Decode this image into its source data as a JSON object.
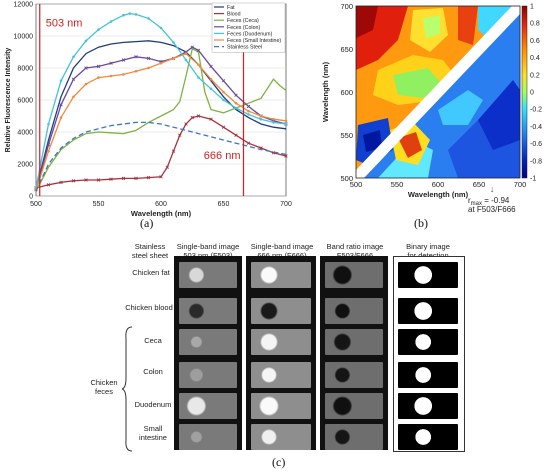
{
  "panel_a": {
    "label": "(a)",
    "chart_data": {
      "type": "line",
      "xlabel": "Wavelength (nm)",
      "ylabel": "Relative Fluorescence Intensity",
      "xlim": [
        500,
        700
      ],
      "ylim": [
        0,
        12000
      ],
      "xticks": [
        "500",
        "550",
        "600",
        "650",
        "700"
      ],
      "yticks": [
        "0",
        "2000",
        "4000",
        "6000",
        "8000",
        "10000",
        "12000"
      ],
      "legend_position": "top-right",
      "annotations": [
        "503 nm",
        "666 nm"
      ],
      "markers_at": [
        503,
        666
      ],
      "series": [
        {
          "name": "Fat",
          "color": "#1f3d7a",
          "dash": "",
          "marker": "",
          "points": [
            [
              500,
              400
            ],
            [
              510,
              3500
            ],
            [
              520,
              6200
            ],
            [
              530,
              8000
            ],
            [
              540,
              8900
            ],
            [
              550,
              9300
            ],
            [
              560,
              9500
            ],
            [
              570,
              9600
            ],
            [
              580,
              9650
            ],
            [
              590,
              9700
            ],
            [
              600,
              9600
            ],
            [
              610,
              9400
            ],
            [
              620,
              9000
            ],
            [
              630,
              8200
            ],
            [
              640,
              7200
            ],
            [
              650,
              6200
            ],
            [
              660,
              5400
            ],
            [
              670,
              4900
            ],
            [
              680,
              4500
            ],
            [
              690,
              4300
            ],
            [
              700,
              4200
            ]
          ]
        },
        {
          "name": "Blood",
          "color": "#a8323e",
          "dash": "",
          "marker": "x",
          "points": [
            [
              500,
              500
            ],
            [
              510,
              700
            ],
            [
              520,
              850
            ],
            [
              530,
              950
            ],
            [
              540,
              1000
            ],
            [
              550,
              1000
            ],
            [
              560,
              1050
            ],
            [
              570,
              1100
            ],
            [
              580,
              1100
            ],
            [
              590,
              1150
            ],
            [
              600,
              1200
            ],
            [
              605,
              1800
            ],
            [
              610,
              2800
            ],
            [
              615,
              3800
            ],
            [
              620,
              4500
            ],
            [
              625,
              4900
            ],
            [
              630,
              5000
            ],
            [
              640,
              4800
            ],
            [
              650,
              4300
            ],
            [
              660,
              3800
            ],
            [
              670,
              3300
            ],
            [
              680,
              3000
            ],
            [
              690,
              2700
            ],
            [
              700,
              2500
            ]
          ]
        },
        {
          "name": "Feces (Ceca)",
          "color": "#7fb241",
          "dash": "",
          "marker": "",
          "points": [
            [
              500,
              300
            ],
            [
              510,
              1800
            ],
            [
              520,
              2900
            ],
            [
              530,
              3500
            ],
            [
              540,
              3900
            ],
            [
              550,
              4000
            ],
            [
              560,
              3950
            ],
            [
              570,
              3900
            ],
            [
              580,
              4100
            ],
            [
              590,
              4600
            ],
            [
              600,
              5000
            ],
            [
              610,
              5400
            ],
            [
              615,
              5900
            ],
            [
              620,
              7500
            ],
            [
              625,
              9200
            ],
            [
              630,
              9000
            ],
            [
              635,
              6500
            ],
            [
              640,
              5400
            ],
            [
              650,
              5200
            ],
            [
              660,
              5500
            ],
            [
              670,
              5800
            ],
            [
              680,
              6100
            ],
            [
              690,
              7300
            ],
            [
              695,
              6900
            ],
            [
              700,
              6600
            ]
          ]
        },
        {
          "name": "Feces (Colon)",
          "color": "#6a4a9c",
          "dash": "",
          "marker": "x",
          "points": [
            [
              500,
              400
            ],
            [
              510,
              3200
            ],
            [
              520,
              5700
            ],
            [
              530,
              7300
            ],
            [
              540,
              8000
            ],
            [
              550,
              8100
            ],
            [
              560,
              8300
            ],
            [
              570,
              8500
            ],
            [
              580,
              8700
            ],
            [
              590,
              8600
            ],
            [
              600,
              8400
            ],
            [
              610,
              8600
            ],
            [
              620,
              9000
            ],
            [
              625,
              9300
            ],
            [
              630,
              9100
            ],
            [
              640,
              8100
            ],
            [
              650,
              7200
            ],
            [
              660,
              6300
            ],
            [
              670,
              5600
            ],
            [
              680,
              5000
            ],
            [
              690,
              4700
            ],
            [
              700,
              4500
            ]
          ]
        },
        {
          "name": "Feces (Duodenum)",
          "color": "#45c3d8",
          "dash": "",
          "marker": "o",
          "points": [
            [
              500,
              500
            ],
            [
              510,
              4500
            ],
            [
              520,
              7200
            ],
            [
              530,
              8700
            ],
            [
              540,
              9700
            ],
            [
              550,
              10400
            ],
            [
              560,
              10900
            ],
            [
              570,
              11300
            ],
            [
              575,
              11400
            ],
            [
              580,
              11350
            ],
            [
              590,
              11100
            ],
            [
              600,
              10500
            ],
            [
              610,
              9600
            ],
            [
              620,
              8500
            ],
            [
              630,
              7400
            ],
            [
              640,
              6700
            ],
            [
              650,
              6000
            ],
            [
              660,
              5500
            ],
            [
              670,
              5100
            ],
            [
              680,
              4800
            ],
            [
              690,
              4600
            ],
            [
              700,
              4500
            ]
          ]
        },
        {
          "name": "Feces (Small Intestine)",
          "color": "#f08a3c",
          "dash": "",
          "marker": "o",
          "points": [
            [
              500,
              350
            ],
            [
              510,
              2800
            ],
            [
              520,
              4900
            ],
            [
              530,
              6200
            ],
            [
              540,
              7000
            ],
            [
              550,
              7400
            ],
            [
              560,
              7500
            ],
            [
              570,
              7600
            ],
            [
              580,
              7800
            ],
            [
              590,
              8000
            ],
            [
              600,
              8300
            ],
            [
              610,
              8600
            ],
            [
              620,
              8900
            ],
            [
              630,
              8200
            ],
            [
              640,
              7300
            ],
            [
              650,
              6500
            ],
            [
              660,
              5800
            ],
            [
              670,
              5300
            ],
            [
              680,
              5000
            ],
            [
              690,
              4800
            ],
            [
              700,
              4700
            ]
          ]
        },
        {
          "name": "Stainless Steel",
          "color": "#3b78c2",
          "dash": "5,3",
          "marker": "",
          "points": [
            [
              500,
              300
            ],
            [
              510,
              2000
            ],
            [
              520,
              3000
            ],
            [
              530,
              3600
            ],
            [
              540,
              4000
            ],
            [
              550,
              4200
            ],
            [
              560,
              4400
            ],
            [
              570,
              4500
            ],
            [
              580,
              4600
            ],
            [
              590,
              4600
            ],
            [
              600,
              4500
            ],
            [
              610,
              4300
            ],
            [
              620,
              4100
            ],
            [
              630,
              3900
            ],
            [
              640,
              3700
            ],
            [
              650,
              3500
            ],
            [
              660,
              3300
            ],
            [
              670,
              3100
            ],
            [
              680,
              2900
            ],
            [
              690,
              2750
            ],
            [
              700,
              2600
            ]
          ]
        }
      ]
    }
  },
  "panel_b": {
    "label": "(b)",
    "chart_data": {
      "type": "heatmap",
      "xlabel": "Wavelength (nm)",
      "ylabel": "Wavelength (nm)",
      "xlim": [
        500,
        700
      ],
      "ylim": [
        500,
        700
      ],
      "xticks": [
        "500",
        "550",
        "600",
        "650",
        "700"
      ],
      "yticks": [
        "500",
        "550",
        "600",
        "650",
        "700"
      ],
      "colorbar_ticks": [
        "1",
        "0.8",
        "0.6",
        "0.4",
        "0.2",
        "0",
        "-0.2",
        "-0.4",
        "-0.6",
        "-0.8",
        "-1"
      ],
      "colorbar_range": [
        -1,
        1
      ],
      "annotation": "r",
      "annotation_sub": "max",
      "annotation_value": " = -0.94",
      "annotation_line2": "at F503/F666",
      "annotation_point": [
        666,
        503
      ]
    }
  },
  "panel_c": {
    "label": "(c)",
    "columns": [
      {
        "l1": "Stainless",
        "l2": "steel sheet"
      },
      {
        "l1": "Single-band image",
        "l2": "503 nm (F503)"
      },
      {
        "l1": "Single-band image",
        "l2": "666 nm (F666)"
      },
      {
        "l1": "Band ratio image",
        "l2": "F503/F666"
      },
      {
        "l1": "Binary image",
        "l2": "for detection"
      }
    ],
    "rows": [
      "Chicken fat",
      "Chicken blood",
      "Ceca",
      "Colon",
      "Duodenum",
      "Small intestine"
    ],
    "group_label_1": "Chicken",
    "group_label_2": "feces"
  }
}
